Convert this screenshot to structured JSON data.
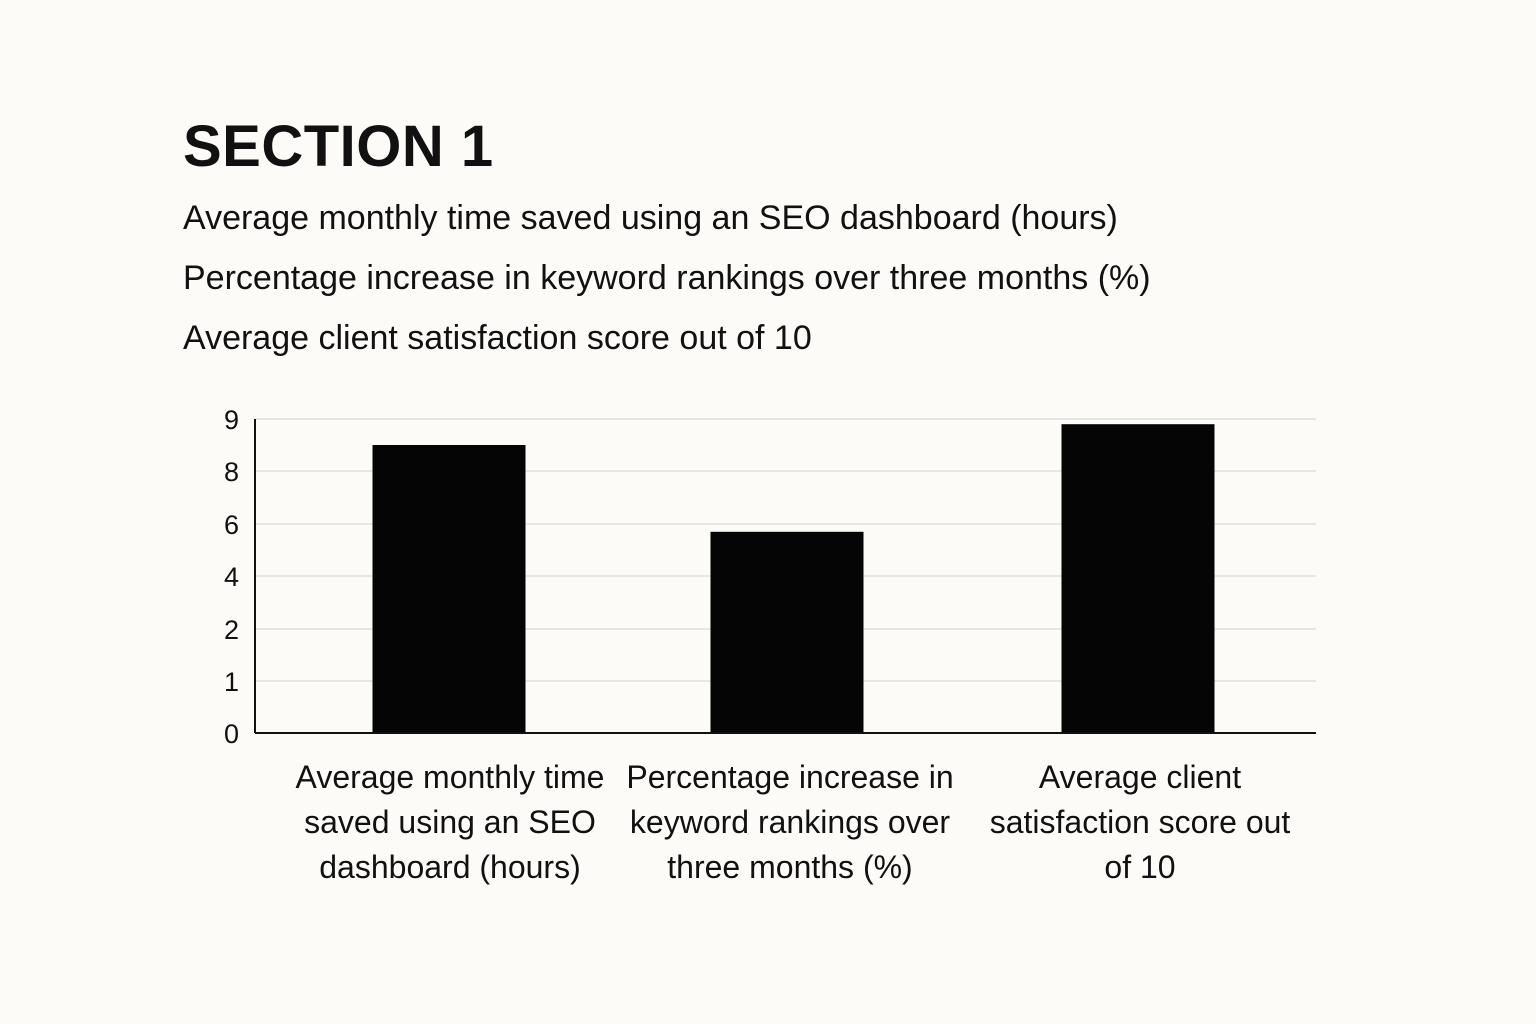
{
  "section": {
    "title": "SECTION 1"
  },
  "descriptions": [
    "Average monthly time saved using an SEO dashboard (hours)",
    "Percentage increase in keyword rankings over three months (%)",
    "Average client satisfaction score out of 10"
  ],
  "colors": {
    "bar": "#050505",
    "background": "#fcfbf7",
    "grid": "#d9d9d9",
    "axis": "#111111"
  },
  "chart_data": {
    "type": "bar",
    "categories": [
      "Average monthly time saved using an SEO dashboard (hours)",
      "Percentage increase in keyword rankings over three months (%)",
      "Average client satisfaction score out of 10"
    ],
    "values": [
      8.5,
      5.7,
      8.9
    ],
    "yticks": [
      0,
      1,
      2,
      4,
      6,
      8,
      9
    ],
    "title": "",
    "xlabel": "",
    "ylabel": "",
    "grid": true,
    "legend": "none"
  }
}
